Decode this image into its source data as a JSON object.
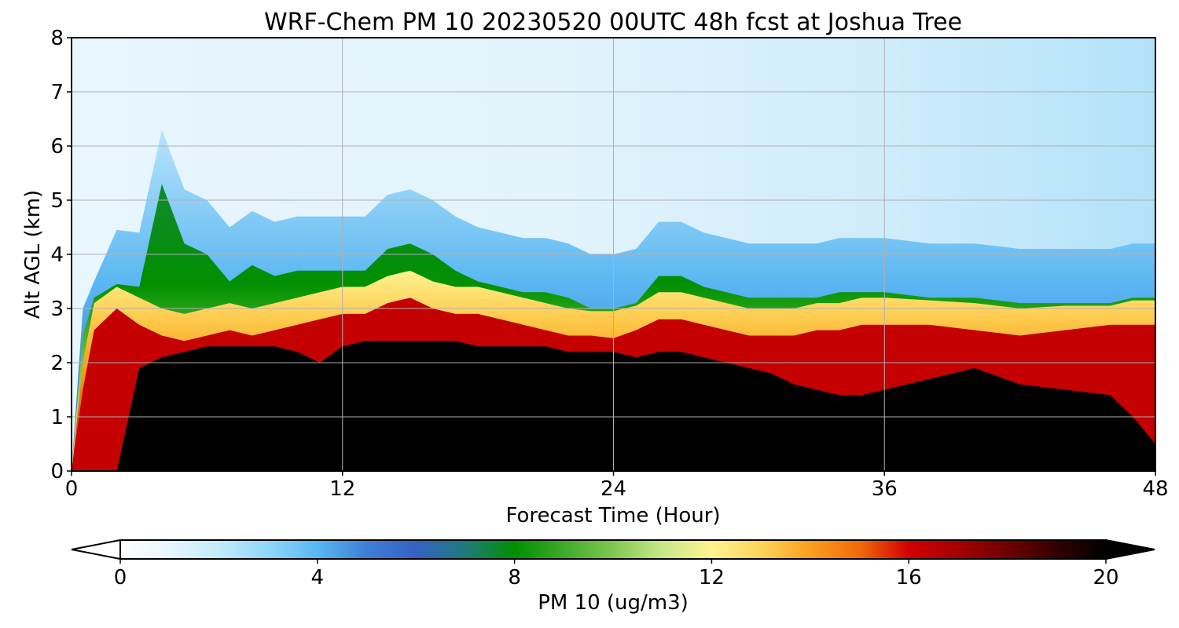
{
  "chart_data": {
    "type": "heatmap",
    "title": "WRF-Chem PM 10  20230520 00UTC 48h fcst at Joshua Tree",
    "xlabel": "Forecast Time (Hour)",
    "ylabel": "Alt AGL (km)",
    "xlim": [
      0,
      48
    ],
    "ylim": [
      0,
      8
    ],
    "x_ticks": [
      0,
      12,
      24,
      36,
      48
    ],
    "y_ticks": [
      0,
      1,
      2,
      3,
      4,
      5,
      6,
      7,
      8
    ],
    "grid": true,
    "colorbar": {
      "label": "PM 10  (ug/m3)",
      "min": 0,
      "max": 20,
      "ticks": [
        0,
        4,
        8,
        12,
        16,
        20
      ],
      "extend": "both",
      "orientation": "horizontal",
      "colors": [
        "#ffffff",
        "#e6f6fd",
        "#c2ebfc",
        "#8fd6fa",
        "#5ab7f2",
        "#3e7fd6",
        "#3561c4",
        "#1f7a7a",
        "#008f00",
        "#3faa2a",
        "#7fc84f",
        "#c9e88a",
        "#fff38f",
        "#fdd35a",
        "#fa9f1f",
        "#f06a0a",
        "#d20000",
        "#a50000",
        "#6e0000",
        "#330000",
        "#000000"
      ]
    },
    "layer_tops_note": "",
    "x": [
      0,
      0.5,
      1,
      2,
      3,
      4,
      5,
      6,
      7,
      8,
      9,
      10,
      11,
      12,
      13,
      14,
      15,
      16,
      17,
      18,
      19,
      20,
      21,
      22,
      23,
      24,
      25,
      26,
      27,
      28,
      29,
      30,
      31,
      32,
      33,
      34,
      35,
      36,
      38,
      40,
      42,
      44,
      46,
      47,
      48
    ],
    "top_green": [
      0.0,
      2.5,
      3.2,
      3.45,
      3.4,
      5.3,
      4.2,
      4.0,
      3.5,
      3.8,
      3.6,
      3.7,
      3.7,
      3.7,
      3.7,
      4.1,
      4.2,
      4.0,
      3.7,
      3.5,
      3.4,
      3.3,
      3.3,
      3.2,
      3.0,
      3.0,
      3.1,
      3.6,
      3.6,
      3.4,
      3.3,
      3.2,
      3.2,
      3.2,
      3.2,
      3.3,
      3.3,
      3.3,
      3.2,
      3.2,
      3.1,
      3.1,
      3.1,
      3.2,
      3.2
    ],
    "top_red": [
      0.0,
      1.5,
      2.6,
      3.0,
      2.7,
      2.5,
      2.4,
      2.5,
      2.6,
      2.5,
      2.6,
      2.7,
      2.8,
      2.9,
      2.9,
      3.1,
      3.2,
      3.0,
      2.9,
      2.9,
      2.8,
      2.7,
      2.6,
      2.5,
      2.5,
      2.45,
      2.6,
      2.8,
      2.8,
      2.7,
      2.6,
      2.5,
      2.5,
      2.5,
      2.6,
      2.6,
      2.7,
      2.7,
      2.7,
      2.6,
      2.5,
      2.6,
      2.7,
      2.7,
      2.7
    ],
    "top_black": [
      0.0,
      0.0,
      0.0,
      0.0,
      1.9,
      2.1,
      2.2,
      2.3,
      2.3,
      2.3,
      2.3,
      2.2,
      2.0,
      2.3,
      2.4,
      2.4,
      2.4,
      2.4,
      2.4,
      2.3,
      2.3,
      2.3,
      2.3,
      2.2,
      2.2,
      2.2,
      2.1,
      2.2,
      2.2,
      2.1,
      2.0,
      1.9,
      1.8,
      1.6,
      1.5,
      1.4,
      1.4,
      1.5,
      1.7,
      1.9,
      1.6,
      1.5,
      1.4,
      1.0,
      0.5
    ]
  }
}
